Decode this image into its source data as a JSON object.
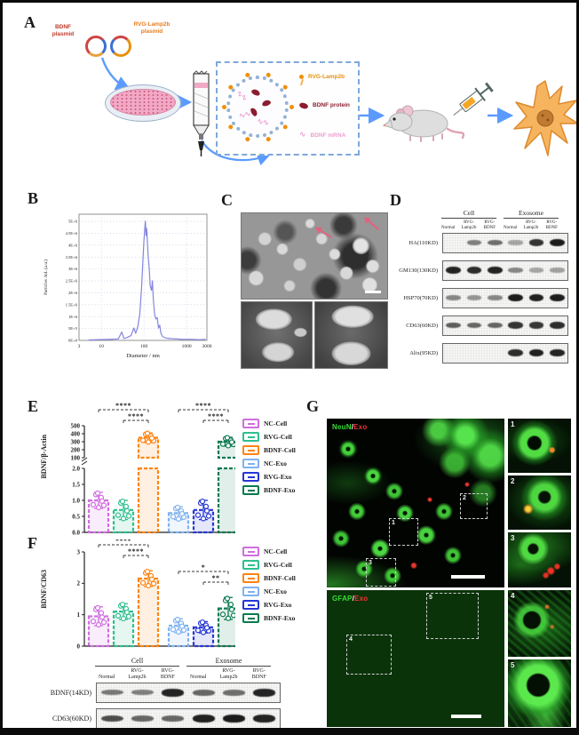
{
  "groups": [
    {
      "label": "NC-Cell",
      "color": "#d06ee0"
    },
    {
      "label": "RVG-Cell",
      "color": "#2fbf8f"
    },
    {
      "label": "BDNF-Cell",
      "color": "#ff8412"
    },
    {
      "label": "NC-Exo",
      "color": "#7fb2f0"
    },
    {
      "label": "RVG-Exo",
      "color": "#2637d4"
    },
    {
      "label": "BDNF-Exo",
      "color": "#0a7a50"
    }
  ],
  "panel_a": {
    "label": "A",
    "bdnf_plasmid_label": "BDNF\nplasmid",
    "rvg_plasmid_label": "RVG-Lamp2b\nplasmid",
    "legend": [
      {
        "icon": "rvg-lamp2b-icon",
        "label": "RVG-Lamp2b",
        "color": "#e8920a"
      },
      {
        "icon": "bdnf-protein-icon",
        "label": "BDNF protein",
        "color": "#8c1d2f"
      },
      {
        "icon": "bdnf-mrna-icon",
        "label": "BDNF mRNA",
        "color": "#ef9ed0"
      }
    ]
  },
  "panel_b": {
    "label": "B",
    "chart_data": {
      "type": "line",
      "xlabel": "Diameter / nm",
      "ylabel": "Particles /mL (a.u.)",
      "x_scale": "log",
      "x_ticks": [
        "3",
        "10",
        "100",
        "1000",
        "3000"
      ],
      "y_ticks": [
        "5E+6",
        "4.5E+6",
        "4E+6",
        "3.5E+6",
        "3E+6",
        "2.5E+6",
        "2E+6",
        "1.5E+6",
        "1E+6",
        "5E+5",
        "0E+0"
      ],
      "ylim": [
        0,
        5300000
      ],
      "peak_nm": 110,
      "line_color": "#8585e0",
      "points": [
        [
          5,
          20000
        ],
        [
          15,
          40000
        ],
        [
          25,
          60000
        ],
        [
          30,
          350000
        ],
        [
          34,
          80000
        ],
        [
          40,
          120000
        ],
        [
          50,
          200000
        ],
        [
          58,
          520000
        ],
        [
          64,
          300000
        ],
        [
          72,
          600000
        ],
        [
          80,
          1100000
        ],
        [
          88,
          2200000
        ],
        [
          95,
          3400000
        ],
        [
          100,
          4200000
        ],
        [
          104,
          4600000
        ],
        [
          108,
          5000000
        ],
        [
          112,
          4400000
        ],
        [
          116,
          4700000
        ],
        [
          120,
          4200000
        ],
        [
          126,
          3500000
        ],
        [
          132,
          3100000
        ],
        [
          140,
          2300000
        ],
        [
          150,
          2100000
        ],
        [
          158,
          2500000
        ],
        [
          166,
          1700000
        ],
        [
          178,
          1100000
        ],
        [
          190,
          900000
        ],
        [
          205,
          950000
        ],
        [
          220,
          520000
        ],
        [
          235,
          640000
        ],
        [
          250,
          300000
        ],
        [
          270,
          180000
        ],
        [
          300,
          120000
        ],
        [
          350,
          90000
        ],
        [
          450,
          70000
        ],
        [
          600,
          60000
        ],
        [
          800,
          40000
        ],
        [
          1200,
          50000
        ],
        [
          2000,
          30000
        ],
        [
          2800,
          40000
        ]
      ]
    }
  },
  "panel_c": {
    "label": "C"
  },
  "panel_d": {
    "label": "D",
    "group_headers": [
      "Cell",
      "Exosome"
    ],
    "lane_labels": [
      "Normal",
      "RVG-\nLamp2b",
      "RVG-\nBDNF",
      "Normal",
      "RVG-\nLamp2b",
      "RVG-\nBDNF"
    ],
    "rows": [
      {
        "label": "HA(110KD)",
        "bands": [
          0,
          0.35,
          0.45,
          0.12,
          0.8,
          0.95
        ]
      },
      {
        "label": "GM130(130KD)",
        "bands": [
          0.9,
          0.85,
          0.9,
          0.3,
          0.12,
          0.15
        ]
      },
      {
        "label": "HSP70(70KD)",
        "bands": [
          0.3,
          0.22,
          0.3,
          0.95,
          0.92,
          0.95
        ]
      },
      {
        "label": "CD63(60KD)",
        "bands": [
          0.55,
          0.5,
          0.5,
          0.8,
          0.78,
          0.85
        ]
      },
      {
        "label": "Alix(95KD)",
        "bands": [
          0,
          0,
          0,
          0.85,
          0.92,
          0.9
        ]
      }
    ]
  },
  "panel_e": {
    "label": "E",
    "chart_data": {
      "type": "bar",
      "ylabel": "BDNF/β-Actin",
      "categories": [
        "NC-Cell",
        "RVG-Cell",
        "BDNF-Cell",
        "NC-Exo",
        "RVG-Exo",
        "BDNF-Exo"
      ],
      "values": [
        1.0,
        0.7,
        350,
        0.6,
        0.7,
        300
      ],
      "errors": [
        0.25,
        0.3,
        60,
        0.2,
        0.3,
        55
      ],
      "axis_break": true,
      "lower_ticks": [
        "0.0",
        "0.5",
        "1.0",
        "1.5",
        "2.0"
      ],
      "lower_range": [
        0,
        2
      ],
      "upper_ticks": [
        "100",
        "200",
        "300",
        "400",
        "500"
      ],
      "upper_range": [
        100,
        500
      ],
      "significance": [
        {
          "from": "NC-Cell",
          "to": "BDNF-Cell",
          "label": "****"
        },
        {
          "from": "RVG-Cell",
          "to": "BDNF-Cell",
          "label": "****"
        },
        {
          "from": "NC-Exo",
          "to": "BDNF-Exo",
          "label": "****"
        },
        {
          "from": "RVG-Exo",
          "to": "BDNF-Exo",
          "label": "****"
        }
      ]
    }
  },
  "panel_f": {
    "label": "F",
    "chart_data": {
      "type": "bar",
      "ylabel": "BDNF/CD63",
      "categories": [
        "NC-Cell",
        "RVG-Cell",
        "BDNF-Cell",
        "NC-Exo",
        "RVG-Exo",
        "BDNF-Exo"
      ],
      "values": [
        0.95,
        1.1,
        2.15,
        0.65,
        0.6,
        1.2
      ],
      "errors": [
        0.3,
        0.25,
        0.25,
        0.22,
        0.18,
        0.35
      ],
      "y_ticks": [
        "0",
        "1",
        "2",
        "3"
      ],
      "ylim": [
        0,
        3
      ],
      "significance": [
        {
          "from": "NC-Cell",
          "to": "BDNF-Cell",
          "label": "****"
        },
        {
          "from": "RVG-Cell",
          "to": "BDNF-Cell",
          "label": "****"
        },
        {
          "from": "NC-Exo",
          "to": "BDNF-Exo",
          "label": "*"
        },
        {
          "from": "RVG-Exo",
          "to": "BDNF-Exo",
          "label": "**"
        }
      ]
    }
  },
  "panel_f_blot": {
    "group_headers": [
      "Cell",
      "Exosome"
    ],
    "lane_labels": [
      "Normal",
      "RVG-\nLamp2b",
      "RVG-\nBDNF",
      "Normal",
      "RVG-\nLamp2b",
      "RVG-\nBDNF"
    ],
    "rows": [
      {
        "label": "BDNF(14KD)",
        "bands": [
          0.4,
          0.35,
          0.9,
          0.5,
          0.45,
          0.9
        ]
      },
      {
        "label": "CD63(60KD)",
        "bands": [
          0.65,
          0.5,
          0.5,
          0.92,
          0.95,
          0.9
        ]
      }
    ]
  },
  "panel_g": {
    "label": "G",
    "top": {
      "marker_green": "NeuN",
      "slash": "/",
      "marker_red": "Exo",
      "boxes": [
        "1",
        "2",
        "3"
      ],
      "insets": [
        "1",
        "2",
        "3"
      ]
    },
    "bottom": {
      "marker_green": "GFAP",
      "slash": "/",
      "marker_red": "Exo",
      "boxes": [
        "4",
        "5"
      ],
      "insets": [
        "4",
        "5"
      ]
    }
  }
}
